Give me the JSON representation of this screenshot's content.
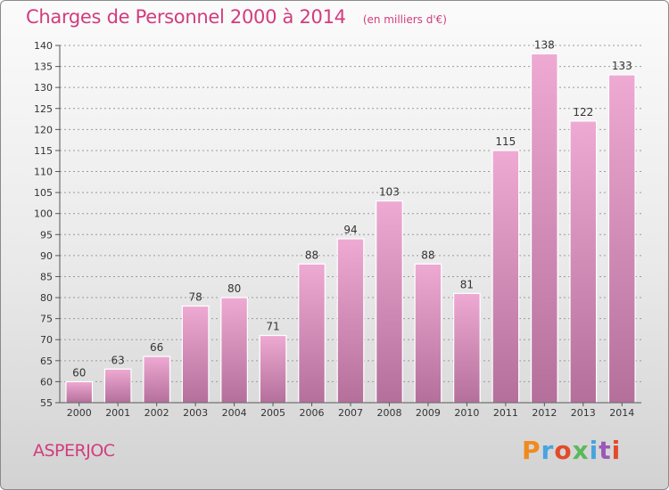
{
  "header": {
    "title": "Charges de Personnel 2000 à 2014",
    "subtitle": "(en milliers d'€)"
  },
  "footer": {
    "commune": "ASPERJOC",
    "brand": "Proxiti",
    "brand_colors": [
      "#f08a1c",
      "#4aa3df",
      "#e24a2a",
      "#5cb85c",
      "#4aa3df",
      "#9b59b6",
      "#e24a2a"
    ]
  },
  "colors": {
    "accent": "#d23c7e",
    "bar_top": "#eeaad2",
    "bar_bottom": "#b46f9b",
    "bar_edge": "#ffffff",
    "grid": "#9a9a9a"
  },
  "chart_data": {
    "type": "bar",
    "title": "Charges de Personnel 2000 à 2014",
    "subtitle": "(en milliers d'€)",
    "categories": [
      "2000",
      "2001",
      "2002",
      "2003",
      "2004",
      "2005",
      "2006",
      "2007",
      "2008",
      "2009",
      "2010",
      "2011",
      "2012",
      "2013",
      "2014"
    ],
    "values": [
      60,
      63,
      66,
      78,
      80,
      71,
      88,
      94,
      103,
      88,
      81,
      115,
      138,
      122,
      133
    ],
    "ylim": [
      55,
      140
    ],
    "yticks": [
      55,
      60,
      65,
      70,
      75,
      80,
      85,
      90,
      95,
      100,
      105,
      110,
      115,
      120,
      125,
      130,
      135,
      140
    ],
    "xlabel": "",
    "ylabel": "",
    "grid": "y-dashed",
    "legend": "none"
  }
}
